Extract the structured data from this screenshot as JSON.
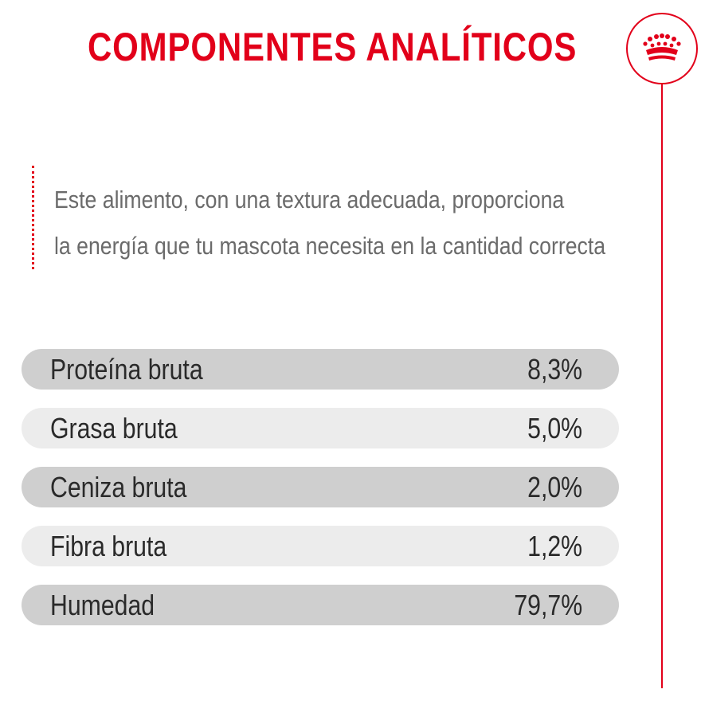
{
  "header": {
    "title": "COMPONENTES ANALÍTICOS"
  },
  "logo": {
    "icon": "crown-icon",
    "color": "#e2001a"
  },
  "description": {
    "line1": "Este alimento, con una textura adecuada, proporciona",
    "line2": "la energía que tu mascota necesita en la cantidad correcta"
  },
  "components": [
    {
      "label": "Proteína bruta",
      "value": "8,3%"
    },
    {
      "label": "Grasa bruta",
      "value": "5,0%"
    },
    {
      "label": "Ceniza bruta",
      "value": "2,0%"
    },
    {
      "label": "Fibra bruta",
      "value": "1,2%"
    },
    {
      "label": "Humedad",
      "value": "79,7%"
    }
  ],
  "colors": {
    "accent": "#e2001a",
    "row_dark": "#cfcfcf",
    "row_light": "#ececec",
    "text_gray": "#6b6b6b"
  }
}
